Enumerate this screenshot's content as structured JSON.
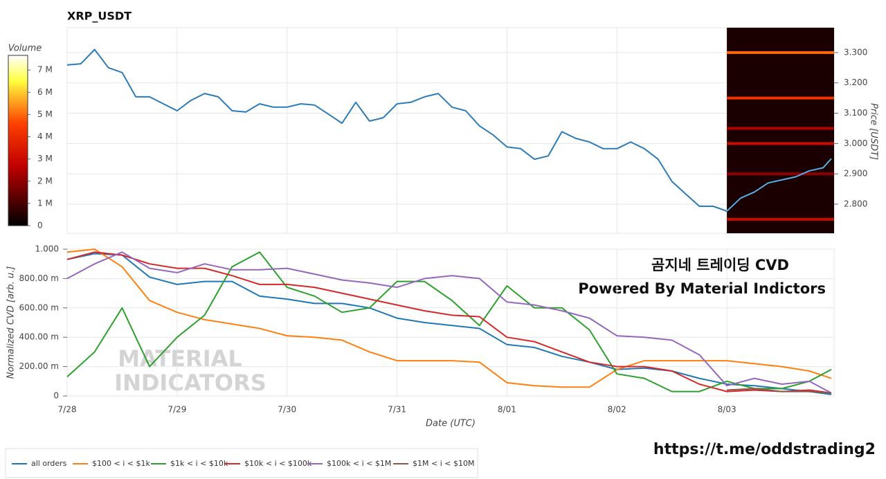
{
  "chart_data": [
    {
      "type": "line",
      "title": "XRP_USDT",
      "y_label": "Price [USDT]",
      "xlim": [
        0,
        6.975
      ],
      "xticks": [
        0,
        1,
        2,
        3,
        4,
        5,
        6
      ],
      "ylim": [
        2.704,
        3.382
      ],
      "yticks": [
        {
          "value": 2.8,
          "label": "2.800"
        },
        {
          "value": 2.9,
          "label": "2.900"
        },
        {
          "value": 3.0,
          "label": "3.000"
        },
        {
          "value": 3.1,
          "label": "3.100"
        },
        {
          "value": 3.2,
          "label": "3.200"
        },
        {
          "value": 3.3,
          "label": "3.300"
        }
      ],
      "grid": true,
      "series": [
        {
          "color": "#2b7bb9",
          "x": [
            0,
            0.125,
            0.25,
            0.375,
            0.5,
            0.625,
            0.75,
            0.875,
            1,
            1.125,
            1.25,
            1.375,
            1.5,
            1.625,
            1.75,
            1.875,
            2,
            2.125,
            2.25,
            2.375,
            2.5,
            2.625,
            2.75,
            2.875,
            3,
            3.125,
            3.25,
            3.375,
            3.5,
            3.625,
            3.75,
            3.875,
            4,
            4.125,
            4.25,
            4.375,
            4.5,
            4.625,
            4.75,
            4.875,
            5,
            5.125,
            5.25,
            5.375,
            5.5,
            5.625,
            5.75,
            5.875,
            6
          ],
          "values": [
            3.259,
            3.263,
            3.31,
            3.25,
            3.234,
            3.154,
            3.154,
            3.131,
            3.108,
            3.142,
            3.165,
            3.154,
            3.108,
            3.104,
            3.131,
            3.12,
            3.12,
            3.131,
            3.127,
            3.097,
            3.067,
            3.136,
            3.074,
            3.085,
            3.131,
            3.136,
            3.154,
            3.165,
            3.12,
            3.108,
            3.058,
            3.028,
            2.989,
            2.983,
            2.948,
            2.959,
            3.039,
            3.017,
            3.005,
            2.983,
            2.983,
            3.005,
            2.983,
            2.948,
            2.875,
            2.834,
            2.793,
            2.793,
            2.777
          ]
        },
        {
          "color": "#5aaee6",
          "x": [
            6,
            6.125,
            6.25,
            6.375,
            6.5,
            6.625,
            6.75,
            6.875,
            6.95
          ],
          "values": [
            2.777,
            2.82,
            2.84,
            2.87,
            2.88,
            2.89,
            2.91,
            2.92,
            2.95
          ]
        }
      ],
      "heatmap": {
        "x_start": 6,
        "levels": [
          3.3,
          3.15,
          3.05,
          3.0,
          2.9,
          2.75
        ],
        "volumes": [
          5000000,
          4200000,
          2500000,
          3000000,
          2000000,
          3000000
        ]
      },
      "colorbar": {
        "title": "Volume",
        "lim": [
          0,
          7660000
        ],
        "ticks": [
          0,
          {
            "value": 1000000,
            "label": "1 M"
          },
          {
            "value": 2000000,
            "label": "2 M"
          },
          {
            "value": 3000000,
            "label": "3 M"
          },
          {
            "value": 4000000,
            "label": "4 M"
          },
          {
            "value": 5000000,
            "label": "5 M"
          },
          {
            "value": 6000000,
            "label": "6 M"
          },
          {
            "value": 7000000,
            "label": "7 M"
          }
        ]
      }
    },
    {
      "type": "line",
      "x_label": "Date (UTC)",
      "y_label": "Normalized CVD [arb. u.]",
      "xlim": [
        0,
        6.975
      ],
      "xticks": [
        {
          "value": 0,
          "label": "7/28"
        },
        {
          "value": 1,
          "label": "7/29"
        },
        {
          "value": 2,
          "label": "7/30"
        },
        {
          "value": 3,
          "label": "7/31"
        },
        {
          "value": 4,
          "label": "8/01"
        },
        {
          "value": 5,
          "label": "8/02"
        },
        {
          "value": 6,
          "label": "8/03"
        }
      ],
      "ylim": [
        0,
        1
      ],
      "yticks": [
        0,
        {
          "value": 0.2,
          "label": "200.00 m"
        },
        {
          "value": 0.4,
          "label": "400.00 m"
        },
        {
          "value": 0.6,
          "label": "600.00 m"
        },
        {
          "value": 0.8,
          "label": "800.00 m"
        },
        {
          "value": 1,
          "label": "1.000"
        }
      ],
      "grid": true,
      "x": [
        0,
        0.25,
        0.5,
        0.75,
        1,
        1.25,
        1.5,
        1.75,
        2,
        2.25,
        2.5,
        2.75,
        3,
        3.25,
        3.5,
        3.75,
        4,
        4.25,
        4.5,
        4.75,
        5,
        5.25,
        5.5,
        5.75,
        6,
        6.25,
        6.5,
        6.75,
        6.95
      ],
      "series": [
        {
          "name": "all orders",
          "color": "#1f77b4",
          "values": [
            0.93,
            0.97,
            0.96,
            0.81,
            0.76,
            0.78,
            0.78,
            0.68,
            0.66,
            0.63,
            0.63,
            0.6,
            0.53,
            0.5,
            0.48,
            0.46,
            0.35,
            0.33,
            0.27,
            0.23,
            0.18,
            0.19,
            0.17,
            0.12,
            0.08,
            0.07,
            0.05,
            0.03,
            0.01
          ]
        },
        {
          "name": "$100 < i < $1k",
          "color": "#ff7f0e",
          "values": [
            0.98,
            1.0,
            0.88,
            0.65,
            0.57,
            0.52,
            0.49,
            0.46,
            0.41,
            0.4,
            0.38,
            0.3,
            0.24,
            0.24,
            0.24,
            0.23,
            0.09,
            0.07,
            0.06,
            0.06,
            0.18,
            0.24,
            0.24,
            0.24,
            0.24,
            0.22,
            0.2,
            0.17,
            0.12
          ]
        },
        {
          "name": "$1k < i < $10k",
          "color": "#2ca02c",
          "values": [
            0.13,
            0.3,
            0.6,
            0.2,
            0.4,
            0.55,
            0.88,
            0.98,
            0.74,
            0.68,
            0.57,
            0.6,
            0.78,
            0.78,
            0.65,
            0.48,
            0.75,
            0.6,
            0.6,
            0.45,
            0.15,
            0.12,
            0.03,
            0.03,
            0.1,
            0.05,
            0.05,
            0.1,
            0.18
          ]
        },
        {
          "name": "$10k < i < $100k",
          "color": "#d62728",
          "values": [
            0.93,
            0.98,
            0.96,
            0.9,
            0.87,
            0.87,
            0.82,
            0.76,
            0.76,
            0.74,
            0.7,
            0.66,
            0.62,
            0.58,
            0.55,
            0.54,
            0.4,
            0.37,
            0.3,
            0.23,
            0.2,
            0.2,
            0.17,
            0.08,
            0.03,
            0.04,
            0.03,
            0.04,
            0.02
          ]
        },
        {
          "name": "$100k < i < $1M",
          "color": "#9467bd",
          "values": [
            0.8,
            0.9,
            0.98,
            0.87,
            0.84,
            0.9,
            0.86,
            0.86,
            0.87,
            0.83,
            0.79,
            0.77,
            0.74,
            0.8,
            0.82,
            0.8,
            0.64,
            0.62,
            0.58,
            0.53,
            0.41,
            0.4,
            0.38,
            0.28,
            0.07,
            0.12,
            0.08,
            0.1,
            0.02
          ]
        },
        {
          "name": "$1M < i < $10M",
          "color": "#8c564b",
          "values": [
            null,
            null,
            null,
            null,
            null,
            null,
            null,
            null,
            null,
            null,
            null,
            null,
            null,
            null,
            null,
            null,
            null,
            null,
            null,
            null,
            null,
            null,
            null,
            null,
            0.04,
            0.05,
            0.03,
            0.03,
            0.02
          ]
        }
      ],
      "annotations": [
        "곰지네 트레이딩 CVD",
        "Powered By Material Indictors"
      ],
      "watermark": [
        "MATERIAL",
        "INDICATORS"
      ],
      "footer": "https://t.me/oddstrading2"
    }
  ]
}
